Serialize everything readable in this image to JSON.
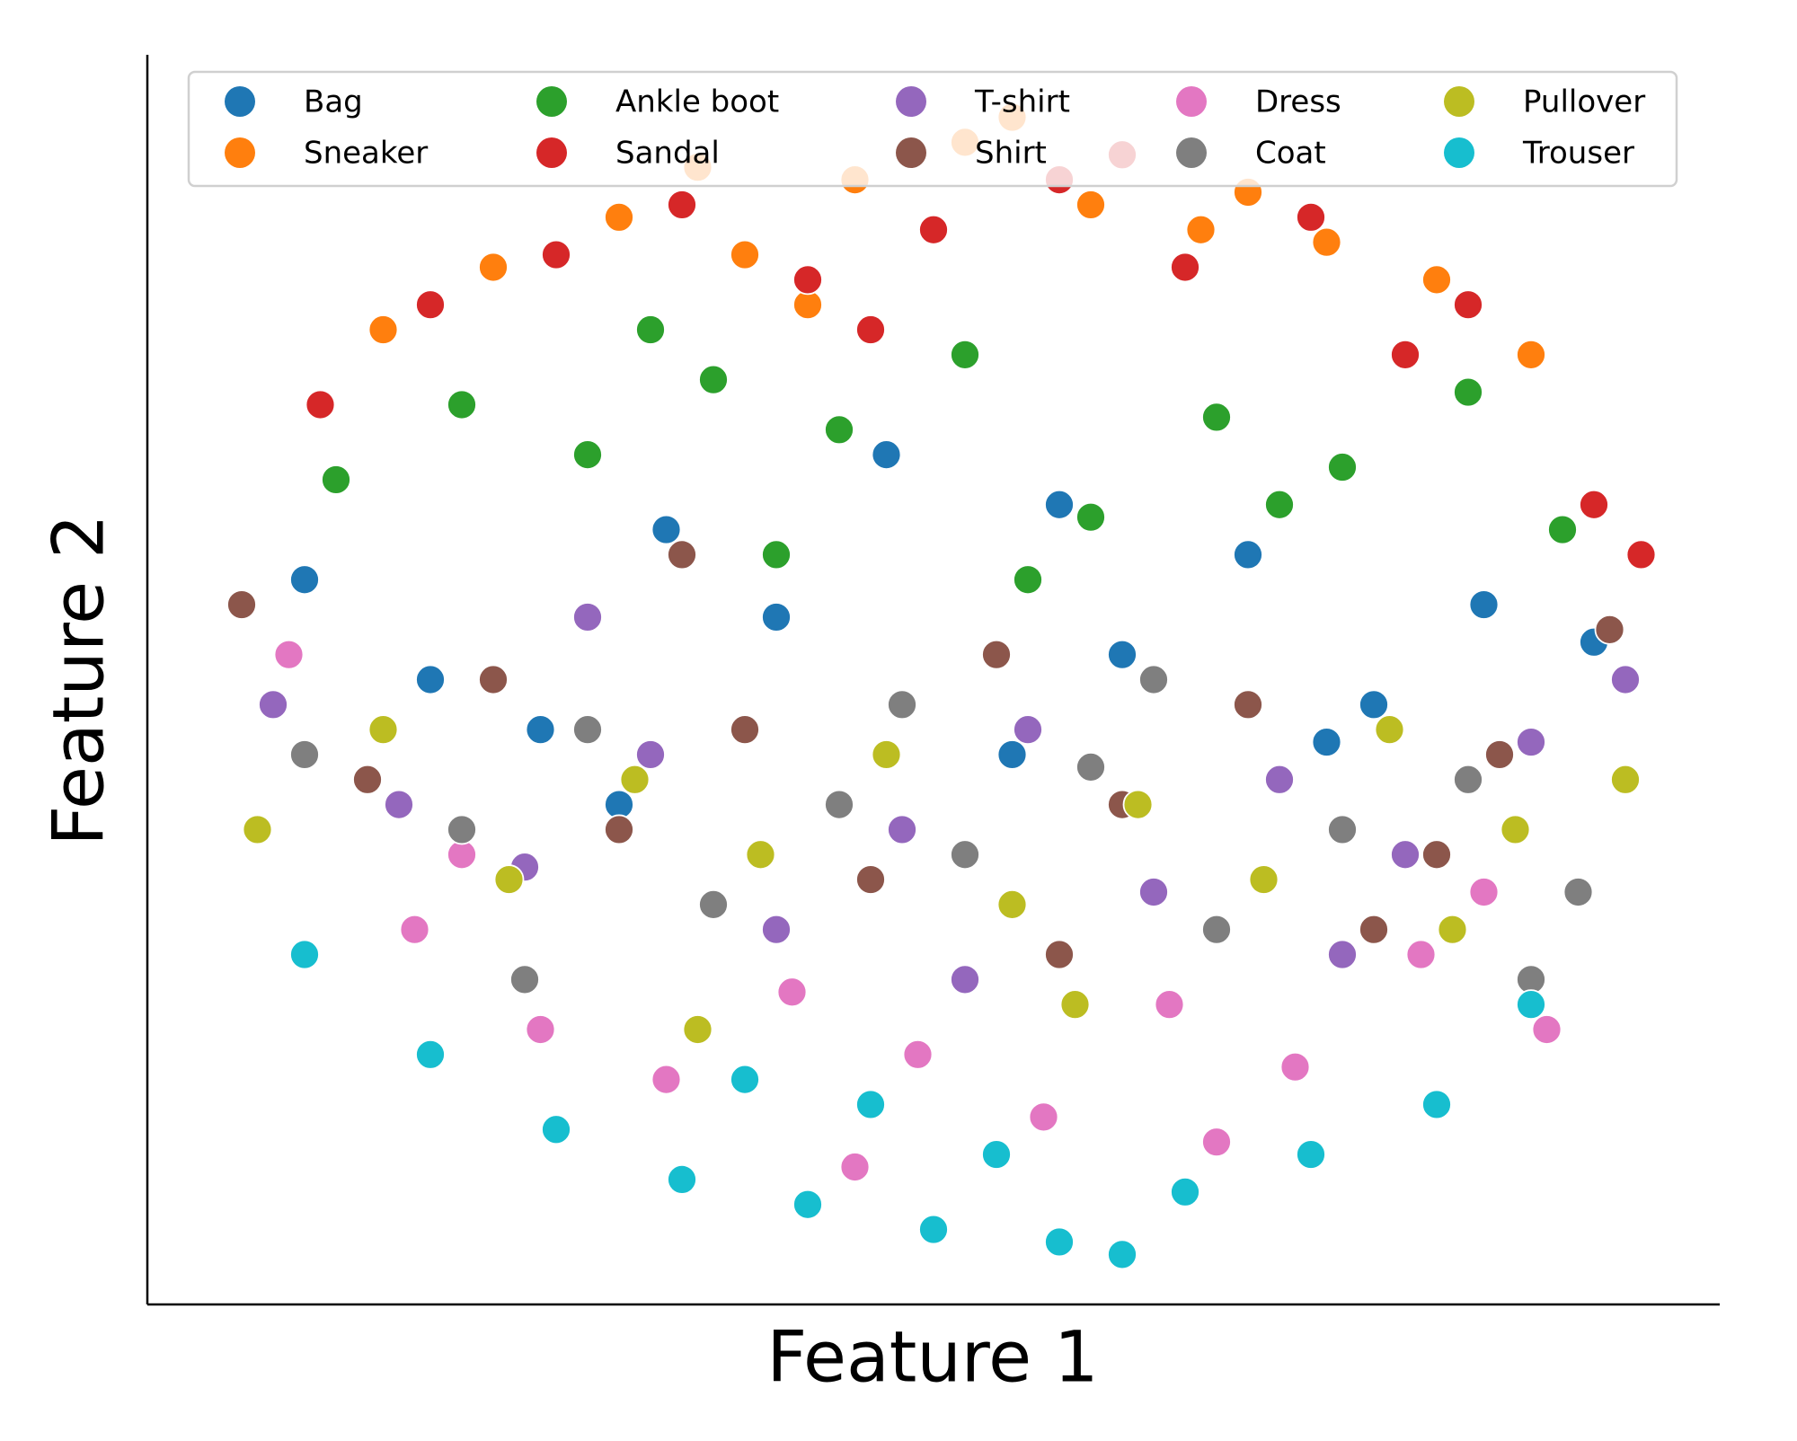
{
  "chart_data": {
    "type": "scatter",
    "x_label": "Feature 1",
    "y_label": "Feature 2",
    "xlim": [
      0,
      100
    ],
    "ylim": [
      0,
      100
    ],
    "legend": "upper center",
    "series": [
      {
        "name": "Bag",
        "color": "#1f77b4",
        "x": [
          10,
          18,
          25,
          33,
          40,
          47,
          55,
          62,
          70,
          78,
          85,
          92,
          30,
          58,
          75
        ],
        "values": [
          58,
          50,
          46,
          62,
          55,
          68,
          44,
          52,
          60,
          48,
          56,
          53,
          40,
          64,
          45
        ]
      },
      {
        "name": "Sneaker",
        "color": "#ff7f0e",
        "x": [
          15,
          22,
          30,
          38,
          45,
          52,
          60,
          67,
          75,
          82,
          88,
          35,
          55,
          70,
          42
        ],
        "values": [
          78,
          83,
          87,
          84,
          90,
          93,
          88,
          86,
          85,
          82,
          76,
          91,
          95,
          89,
          80
        ]
      },
      {
        "name": "Ankle boot",
        "color": "#2ca02c",
        "x": [
          12,
          20,
          28,
          36,
          44,
          52,
          60,
          68,
          76,
          84,
          90,
          40,
          56,
          72,
          32
        ],
        "values": [
          66,
          72,
          68,
          74,
          70,
          76,
          63,
          71,
          67,
          73,
          62,
          60,
          58,
          64,
          78
        ]
      },
      {
        "name": "Sandal",
        "color": "#d62728",
        "x": [
          11,
          18,
          26,
          34,
          42,
          50,
          58,
          66,
          74,
          84,
          92,
          46,
          62,
          80,
          95
        ],
        "values": [
          72,
          80,
          84,
          88,
          82,
          86,
          90,
          83,
          87,
          80,
          64,
          78,
          92,
          76,
          60
        ]
      },
      {
        "name": "T-shirt",
        "color": "#9467bd",
        "x": [
          8,
          16,
          24,
          32,
          40,
          48,
          56,
          64,
          72,
          80,
          88,
          94,
          28,
          52,
          76
        ],
        "values": [
          48,
          40,
          35,
          44,
          30,
          38,
          46,
          33,
          42,
          36,
          45,
          50,
          55,
          26,
          28
        ]
      },
      {
        "name": "Shirt",
        "color": "#8c564b",
        "x": [
          6,
          14,
          22,
          30,
          38,
          46,
          54,
          62,
          70,
          78,
          86,
          93,
          34,
          58,
          82
        ],
        "values": [
          56,
          42,
          50,
          38,
          46,
          34,
          52,
          40,
          48,
          30,
          44,
          54,
          60,
          28,
          36
        ]
      },
      {
        "name": "Dress",
        "color": "#e377c2",
        "x": [
          9,
          17,
          25,
          33,
          41,
          49,
          57,
          65,
          73,
          81,
          89,
          20,
          45,
          68,
          85
        ],
        "values": [
          52,
          30,
          22,
          18,
          25,
          20,
          15,
          24,
          19,
          28,
          22,
          36,
          11,
          13,
          33
        ]
      },
      {
        "name": "Coat",
        "color": "#7f7f7f",
        "x": [
          10,
          20,
          28,
          36,
          44,
          52,
          60,
          68,
          76,
          84,
          91,
          24,
          48,
          64,
          88
        ],
        "values": [
          44,
          38,
          46,
          32,
          40,
          36,
          43,
          30,
          38,
          42,
          33,
          26,
          48,
          50,
          26
        ]
      },
      {
        "name": "Pullover",
        "color": "#bcbd22",
        "x": [
          7,
          15,
          23,
          31,
          39,
          47,
          55,
          63,
          71,
          79,
          87,
          94,
          35,
          59,
          83
        ],
        "values": [
          38,
          46,
          34,
          42,
          36,
          44,
          32,
          40,
          34,
          46,
          38,
          42,
          22,
          24,
          30
        ]
      },
      {
        "name": "Trouser",
        "color": "#17becf",
        "x": [
          10,
          18,
          26,
          34,
          42,
          50,
          58,
          66,
          74,
          82,
          88,
          38,
          54,
          62,
          46
        ],
        "values": [
          28,
          20,
          14,
          10,
          8,
          6,
          5,
          9,
          12,
          16,
          24,
          18,
          12,
          4,
          16
        ]
      }
    ]
  }
}
